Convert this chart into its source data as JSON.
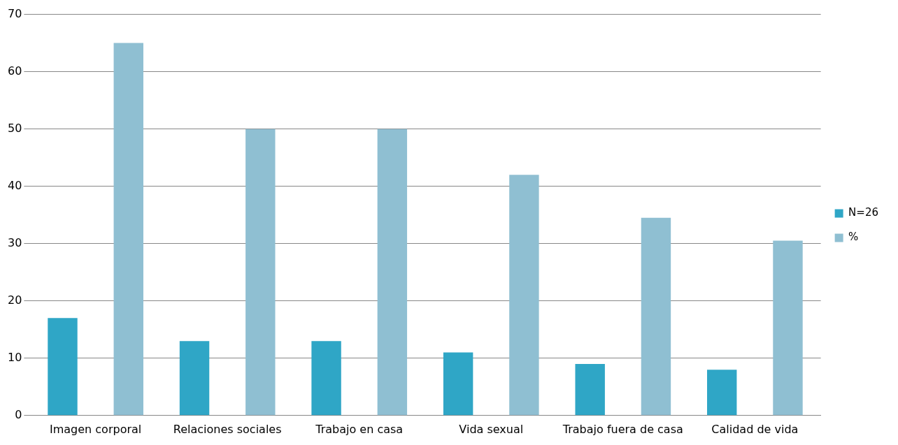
{
  "chart_data": {
    "type": "bar",
    "categories": [
      "Imagen corporal",
      "Relaciones sociales",
      "Trabajo en casa",
      "Vida sexual",
      "Trabajo fuera de casa",
      "Calidad de vida"
    ],
    "series": [
      {
        "name": "N=26",
        "color": "#2fa6c6",
        "values": [
          17,
          13,
          13,
          11,
          9,
          8
        ]
      },
      {
        "name": "%",
        "color": "#8fbfd2",
        "values": [
          65,
          50,
          50,
          42,
          34.5,
          30.5
        ]
      }
    ],
    "ylim": [
      0,
      70
    ],
    "yticks": [
      0,
      10,
      20,
      30,
      40,
      50,
      60,
      70
    ],
    "grid": "y",
    "legend": "right"
  }
}
